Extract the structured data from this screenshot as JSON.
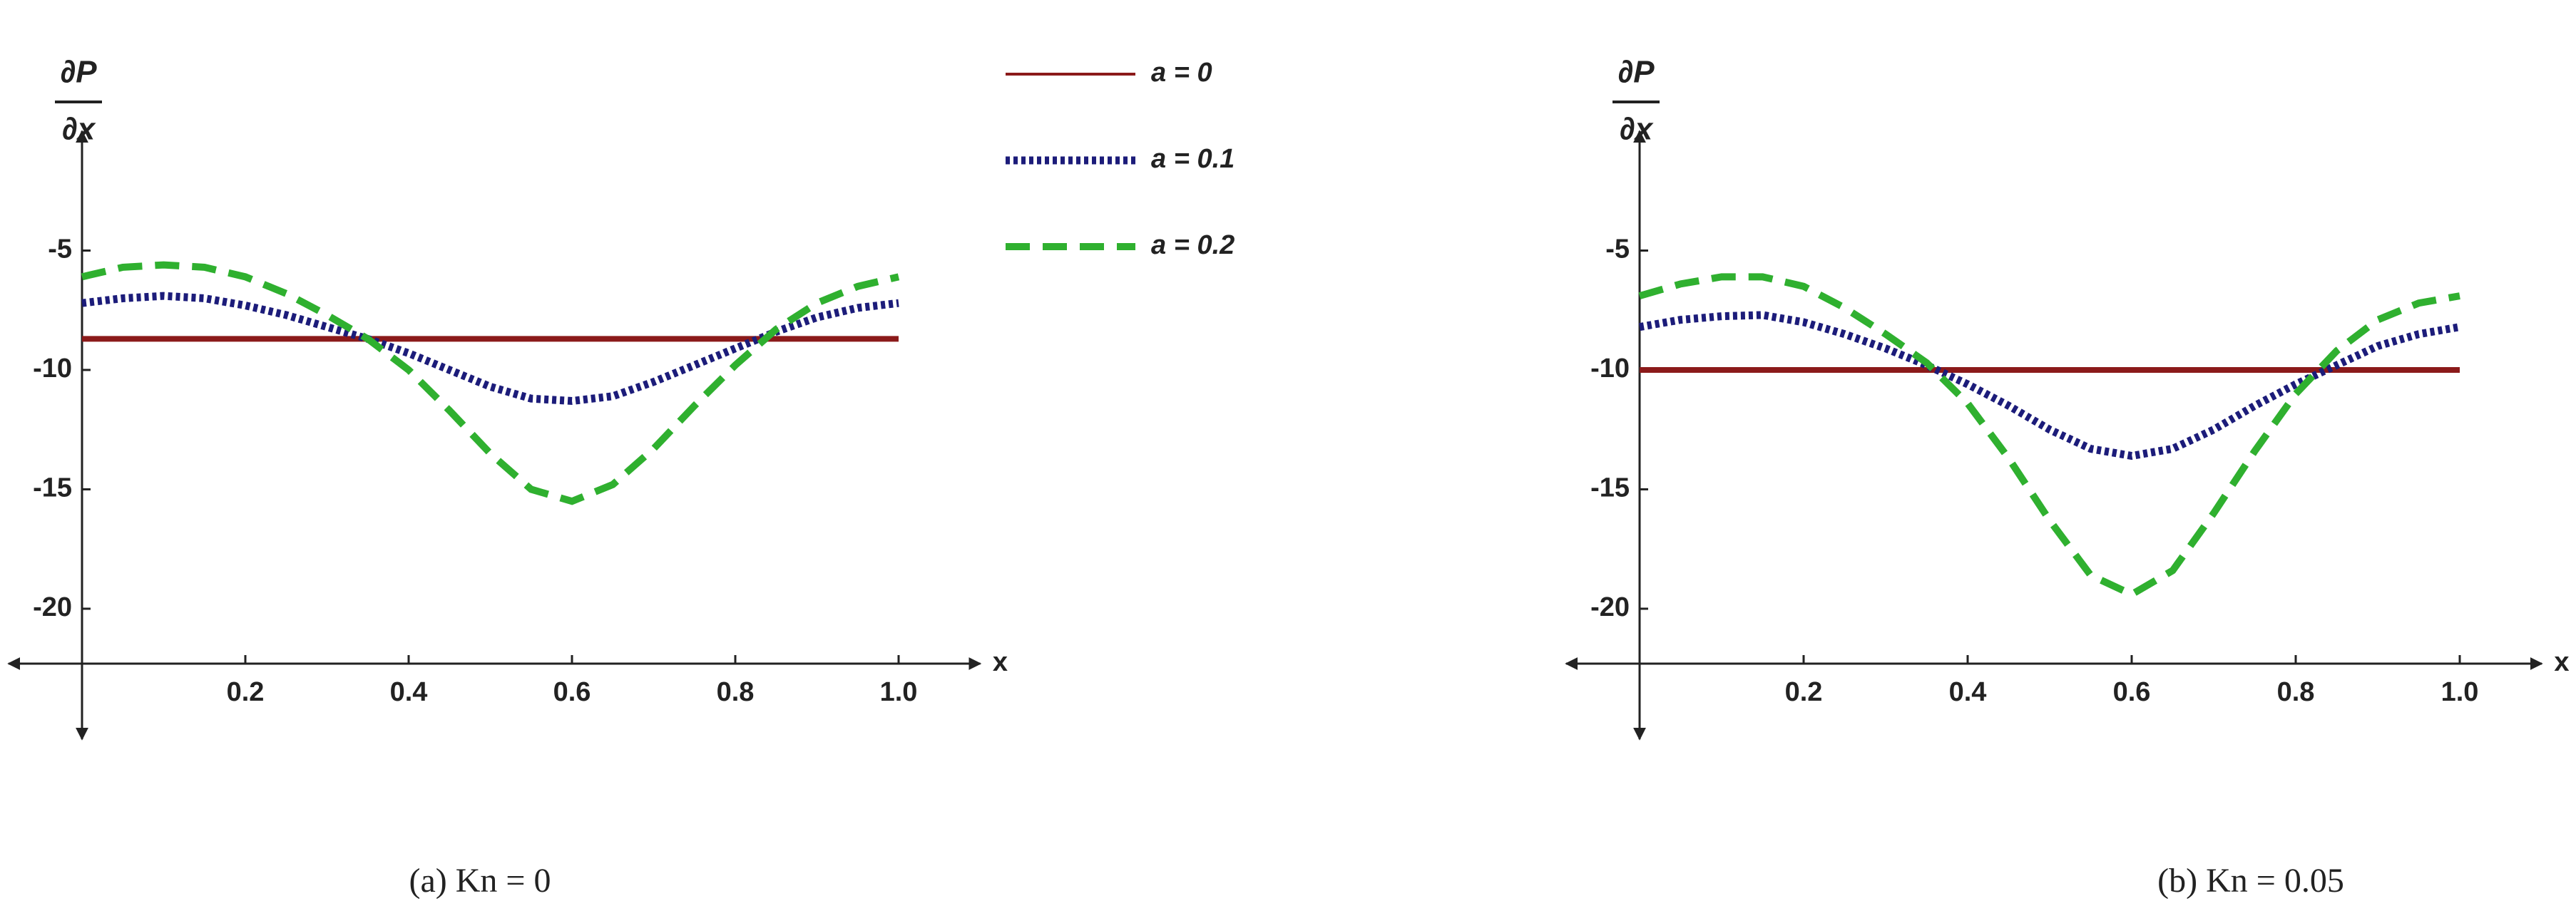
{
  "chart_data": [
    {
      "type": "line",
      "caption": "(a) Kn = 0",
      "y_label_numerator": "∂P",
      "y_label_denominator": "∂x",
      "x_label": "x",
      "x": [
        0,
        0.05,
        0.1,
        0.15,
        0.2,
        0.25,
        0.3,
        0.35,
        0.4,
        0.45,
        0.5,
        0.55,
        0.6,
        0.65,
        0.7,
        0.75,
        0.8,
        0.85,
        0.9,
        0.95,
        1.0
      ],
      "xlim": [
        0,
        1.1
      ],
      "ylim": [
        -22.3,
        0
      ],
      "xticks": [
        0.2,
        0.4,
        0.6,
        {
          "value": 0.8,
          "label": "0.8"
        },
        {
          "value": 1.0,
          "label": "1.0"
        }
      ],
      "yticks": [
        -20,
        -15,
        -10,
        -5
      ],
      "legend": "right-outside",
      "series": [
        {
          "name": "a = 0",
          "color": "#8b1a1a",
          "style": "solid",
          "values": [
            -8.7,
            -8.7,
            -8.7,
            -8.7,
            -8.7,
            -8.7,
            -8.7,
            -8.7,
            -8.7,
            -8.7,
            -8.7,
            -8.7,
            -8.7,
            -8.7,
            -8.7,
            -8.7,
            -8.7,
            -8.7,
            -8.7,
            -8.7,
            -8.7
          ]
        },
        {
          "name": "a = 0.1",
          "color": "#1c1c7a",
          "style": "dotted",
          "values": [
            -7.2,
            -7.0,
            -6.9,
            -7.0,
            -7.3,
            -7.7,
            -8.2,
            -8.7,
            -9.3,
            -10.0,
            -10.7,
            -11.2,
            -11.3,
            -11.1,
            -10.5,
            -9.8,
            -9.1,
            -8.4,
            -7.8,
            -7.4,
            -7.2
          ]
        },
        {
          "name": "a = 0.2",
          "color": "#2fb02f",
          "style": "dashed",
          "values": [
            -6.1,
            -5.7,
            -5.6,
            -5.7,
            -6.1,
            -6.8,
            -7.7,
            -8.7,
            -10.0,
            -11.7,
            -13.5,
            -15.0,
            -15.5,
            -14.8,
            -13.3,
            -11.5,
            -9.8,
            -8.3,
            -7.2,
            -6.5,
            -6.1
          ]
        }
      ]
    },
    {
      "type": "line",
      "caption": "(b) Kn = 0.05",
      "y_label_numerator": "∂P",
      "y_label_denominator": "∂x",
      "x_label": "x",
      "x": [
        0,
        0.05,
        0.1,
        0.15,
        0.2,
        0.25,
        0.3,
        0.35,
        0.4,
        0.45,
        0.5,
        0.55,
        0.6,
        0.65,
        0.7,
        0.75,
        0.8,
        0.85,
        0.9,
        0.95,
        1.0
      ],
      "xlim": [
        0,
        1.1
      ],
      "ylim": [
        -22.3,
        0
      ],
      "xticks": [
        0.2,
        0.4,
        0.6,
        {
          "value": 0.8,
          "label": "0.8"
        },
        {
          "value": 1.0,
          "label": "1.0"
        }
      ],
      "yticks": [
        -20,
        -15,
        -10,
        -5
      ],
      "legend": false,
      "series": [
        {
          "color": "#8b1a1a",
          "style": "solid",
          "values": [
            -10,
            -10,
            -10,
            -10,
            -10,
            -10,
            -10,
            -10,
            -10,
            -10,
            -10,
            -10,
            -10,
            -10,
            -10,
            -10,
            -10,
            -10,
            -10,
            -10,
            -10
          ]
        },
        {
          "color": "#1c1c7a",
          "style": "dotted",
          "values": [
            -8.2,
            -7.9,
            -7.75,
            -7.7,
            -8.0,
            -8.5,
            -9.1,
            -9.8,
            -10.6,
            -11.5,
            -12.5,
            -13.3,
            -13.6,
            -13.3,
            -12.5,
            -11.5,
            -10.6,
            -9.8,
            -9.0,
            -8.5,
            -8.2
          ]
        },
        {
          "color": "#2fb02f",
          "style": "dashed",
          "values": [
            -6.9,
            -6.4,
            -6.1,
            -6.1,
            -6.5,
            -7.4,
            -8.5,
            -9.7,
            -11.4,
            -13.7,
            -16.3,
            -18.6,
            -19.4,
            -18.4,
            -16.0,
            -13.4,
            -11.0,
            -9.2,
            -7.9,
            -7.2,
            -6.9
          ]
        }
      ]
    }
  ]
}
